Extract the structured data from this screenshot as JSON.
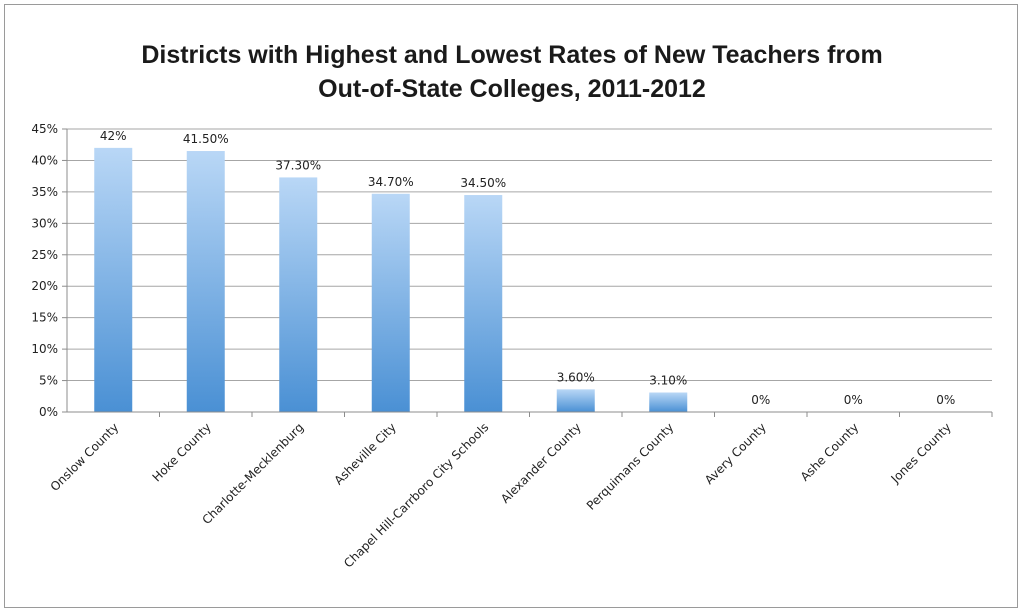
{
  "chart_data": {
    "type": "bar",
    "title_lines": [
      "Districts with Highest and Lowest Rates of New Teachers from",
      "Out-of-State Colleges, 2011-2012"
    ],
    "categories": [
      "Onslow County",
      "Hoke County",
      "Charlotte-Mecklenburg",
      "Asheville City",
      "Chapel Hill-Carrboro City Schools",
      "Alexander County",
      "Perquimans County",
      "Avery County",
      "Ashe County",
      "Jones County"
    ],
    "values": [
      42,
      41.5,
      37.3,
      34.7,
      34.5,
      3.6,
      3.1,
      0,
      0,
      0
    ],
    "data_labels": [
      "42%",
      "41.50%",
      "37.30%",
      "34.70%",
      "34.50%",
      "3.60%",
      "3.10%",
      "0%",
      "0%",
      "0%"
    ],
    "y_ticks": [
      "0%",
      "5%",
      "10%",
      "15%",
      "20%",
      "25%",
      "30%",
      "35%",
      "40%",
      "45%"
    ],
    "ylim": [
      0,
      45
    ],
    "grid": true,
    "legend": "none",
    "colors": {
      "bar_top": "#b9d7f6",
      "bar_bottom": "#4a90d4",
      "grid": "#a6a6a6",
      "axis": "#8c8c8c"
    }
  }
}
